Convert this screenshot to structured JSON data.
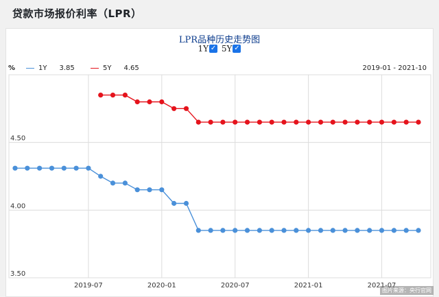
{
  "page": {
    "title": "贷款市场报价利率（LPR）"
  },
  "toggles": [
    {
      "label": "1Y",
      "checked": true
    },
    {
      "label": "5Y",
      "checked": true
    }
  ],
  "colors": {
    "s1y": "#4a90d9",
    "s5y": "#e5131c",
    "grid": "#dcdcdc"
  },
  "watermark": "图片来源：央行官网",
  "chart_data": {
    "type": "line",
    "title": "LPR品种历史走势图",
    "unit_label": "%",
    "range_label": "2019-01 - 2021-10",
    "ylim": [
      3.5,
      5.0
    ],
    "y_ticks": [
      "3.50",
      "4.00",
      "4.50"
    ],
    "x_ticks": [
      "2019-07",
      "2020-01",
      "2020-07",
      "2021-01",
      "2021-07"
    ],
    "grid": true,
    "x": [
      "2019-01",
      "2019-02",
      "2019-03",
      "2019-04",
      "2019-05",
      "2019-06",
      "2019-07",
      "2019-08",
      "2019-09",
      "2019-10",
      "2019-11",
      "2019-12",
      "2020-01",
      "2020-02",
      "2020-03",
      "2020-04",
      "2020-05",
      "2020-06",
      "2020-07",
      "2020-08",
      "2020-09",
      "2020-10",
      "2020-11",
      "2020-12",
      "2021-01",
      "2021-02",
      "2021-03",
      "2021-04",
      "2021-05",
      "2021-06",
      "2021-07",
      "2021-08",
      "2021-09",
      "2021-10"
    ],
    "series": [
      {
        "name": "1Y",
        "latest": "3.85",
        "values": [
          4.31,
          4.31,
          4.31,
          4.31,
          4.31,
          4.31,
          4.31,
          4.25,
          4.2,
          4.2,
          4.15,
          4.15,
          4.15,
          4.05,
          4.05,
          3.85,
          3.85,
          3.85,
          3.85,
          3.85,
          3.85,
          3.85,
          3.85,
          3.85,
          3.85,
          3.85,
          3.85,
          3.85,
          3.85,
          3.85,
          3.85,
          3.85,
          3.85,
          3.85
        ]
      },
      {
        "name": "5Y",
        "latest": "4.65",
        "values": [
          null,
          null,
          null,
          null,
          null,
          null,
          null,
          4.85,
          4.85,
          4.85,
          4.8,
          4.8,
          4.8,
          4.75,
          4.75,
          4.65,
          4.65,
          4.65,
          4.65,
          4.65,
          4.65,
          4.65,
          4.65,
          4.65,
          4.65,
          4.65,
          4.65,
          4.65,
          4.65,
          4.65,
          4.65,
          4.65,
          4.65,
          4.65
        ]
      }
    ]
  }
}
